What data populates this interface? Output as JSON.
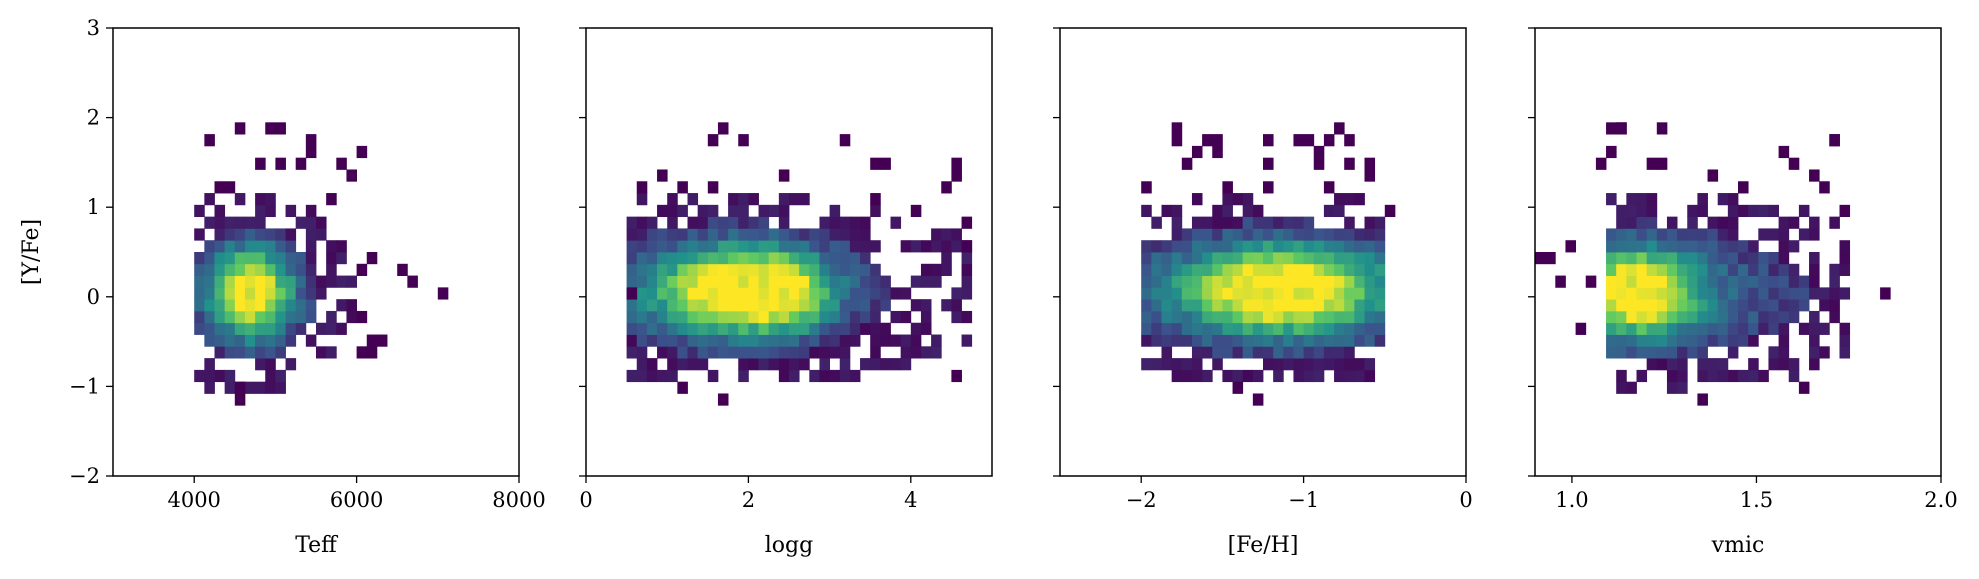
{
  "colors": {
    "viridis": [
      "#440154",
      "#3b528b",
      "#21918c",
      "#5ec962",
      "#fde725"
    ],
    "axis": "#000000",
    "background": "#ffffff"
  },
  "chart_data": [
    {
      "type": "heatmap",
      "xlabel": "Teff",
      "ylabel": "[Y/Fe]",
      "xlim": [
        3000,
        8000
      ],
      "ylim": [
        -2,
        3
      ],
      "xticks": [
        4000,
        6000,
        8000
      ],
      "xtick_labels": [
        "4000",
        "6000",
        "8000"
      ],
      "yticks": [
        -2,
        -1,
        0,
        1,
        2,
        3
      ],
      "ytick_labels": [
        "−2",
        "−1",
        "0",
        "1",
        "2",
        "3"
      ],
      "density": {
        "x_range": [
          4000,
          6300
        ],
        "y_range": [
          -1.1,
          1.9
        ],
        "cores": [
          {
            "x": 4700,
            "y": 0.05,
            "sx": 330,
            "sy": 0.32,
            "w": 1.0
          }
        ],
        "halo": {
          "sx": 700,
          "sy": 0.6,
          "w": 0.15
        }
      },
      "outliers": [
        [
          4200,
          1.8
        ],
        [
          4900,
          1.9
        ],
        [
          5000,
          1.9
        ],
        [
          5400,
          1.8
        ],
        [
          5100,
          1.5
        ],
        [
          5250,
          1.5
        ],
        [
          7100,
          0.1
        ],
        [
          6500,
          0.3
        ],
        [
          6700,
          0.2
        ],
        [
          4600,
          -1.1
        ],
        [
          4500,
          -1.0
        ],
        [
          6300,
          -0.5
        ],
        [
          6000,
          -0.6
        ]
      ]
    },
    {
      "type": "heatmap",
      "xlabel": "logg",
      "ylabel": "",
      "xlim": [
        0,
        5
      ],
      "ylim": [
        -2,
        3
      ],
      "xticks": [
        0,
        2,
        4
      ],
      "xtick_labels": [
        "0",
        "2",
        "4"
      ],
      "yticks": [
        -2,
        -1,
        0,
        1,
        2,
        3
      ],
      "ytick_labels": [],
      "density": {
        "x_range": [
          0.5,
          4.7
        ],
        "y_range": [
          -1.0,
          1.6
        ],
        "cores": [
          {
            "x": 1.8,
            "y": 0.08,
            "sx": 0.6,
            "sy": 0.3,
            "w": 1.0
          },
          {
            "x": 2.5,
            "y": 0.05,
            "sx": 0.35,
            "sy": 0.28,
            "w": 0.55
          }
        ],
        "halo": {
          "sx": 1.6,
          "sy": 0.5,
          "w": 0.25
        }
      },
      "outliers": [
        [
          1.5,
          1.8
        ],
        [
          1.7,
          1.9
        ],
        [
          1.9,
          1.8
        ],
        [
          3.2,
          1.8
        ],
        [
          4.5,
          1.5
        ],
        [
          4.6,
          1.4
        ],
        [
          1.7,
          -1.1
        ],
        [
          1.2,
          -1.0
        ],
        [
          0.5,
          0.0
        ],
        [
          4.7,
          0.5
        ]
      ]
    },
    {
      "type": "heatmap",
      "xlabel": "[Fe/H]",
      "ylabel": "",
      "xlim": [
        -2.5,
        0
      ],
      "ylim": [
        -2,
        3
      ],
      "xticks": [
        -2,
        -1,
        0
      ],
      "xtick_labels": [
        "−2",
        "−1",
        "0"
      ],
      "yticks": [
        -2,
        -1,
        0,
        1,
        2,
        3
      ],
      "ytick_labels": [],
      "density": {
        "x_range": [
          -2.0,
          -0.5
        ],
        "y_range": [
          -1.1,
          1.9
        ],
        "cores": [
          {
            "x": -1.15,
            "y": 0.08,
            "sx": 0.35,
            "sy": 0.3,
            "w": 1.0
          }
        ],
        "halo": {
          "sx": 0.9,
          "sy": 0.45,
          "w": 0.35
        }
      },
      "outliers": [
        [
          -2.0,
          1.2
        ],
        [
          -1.2,
          1.8
        ],
        [
          -1.0,
          1.8
        ],
        [
          -0.8,
          1.9
        ],
        [
          -0.7,
          1.7
        ],
        [
          -1.3,
          -1.1
        ],
        [
          -1.4,
          -1.0
        ],
        [
          -0.5,
          1.0
        ],
        [
          -0.6,
          1.3
        ]
      ]
    },
    {
      "type": "heatmap",
      "xlabel": "vmic",
      "ylabel": "",
      "xlim": [
        0.9,
        2.0
      ],
      "ylim": [
        -2,
        3
      ],
      "xticks": [
        1.0,
        1.5,
        2.0
      ],
      "xtick_labels": [
        "1.0",
        "1.5",
        "2.0"
      ],
      "yticks": [
        -2,
        -1,
        0,
        1,
        2,
        3
      ],
      "ytick_labels": [],
      "density": {
        "x_range": [
          1.08,
          1.75
        ],
        "y_range": [
          -1.1,
          1.9
        ],
        "cores": [
          {
            "x": 1.18,
            "y": 0.05,
            "sx": 0.1,
            "sy": 0.3,
            "w": 1.0
          }
        ],
        "halo": {
          "sx": 0.35,
          "sy": 0.5,
          "w": 0.3
        }
      },
      "outliers": [
        [
          0.92,
          0.4
        ],
        [
          0.95,
          0.4
        ],
        [
          1.0,
          0.5
        ],
        [
          0.97,
          0.2
        ],
        [
          1.02,
          -0.3
        ],
        [
          1.06,
          0.2
        ],
        [
          1.86,
          0.1
        ],
        [
          1.35,
          -1.1
        ],
        [
          1.7,
          1.8
        ],
        [
          1.1,
          1.9
        ],
        [
          1.13,
          1.9
        ],
        [
          1.07,
          1.5
        ]
      ]
    }
  ]
}
